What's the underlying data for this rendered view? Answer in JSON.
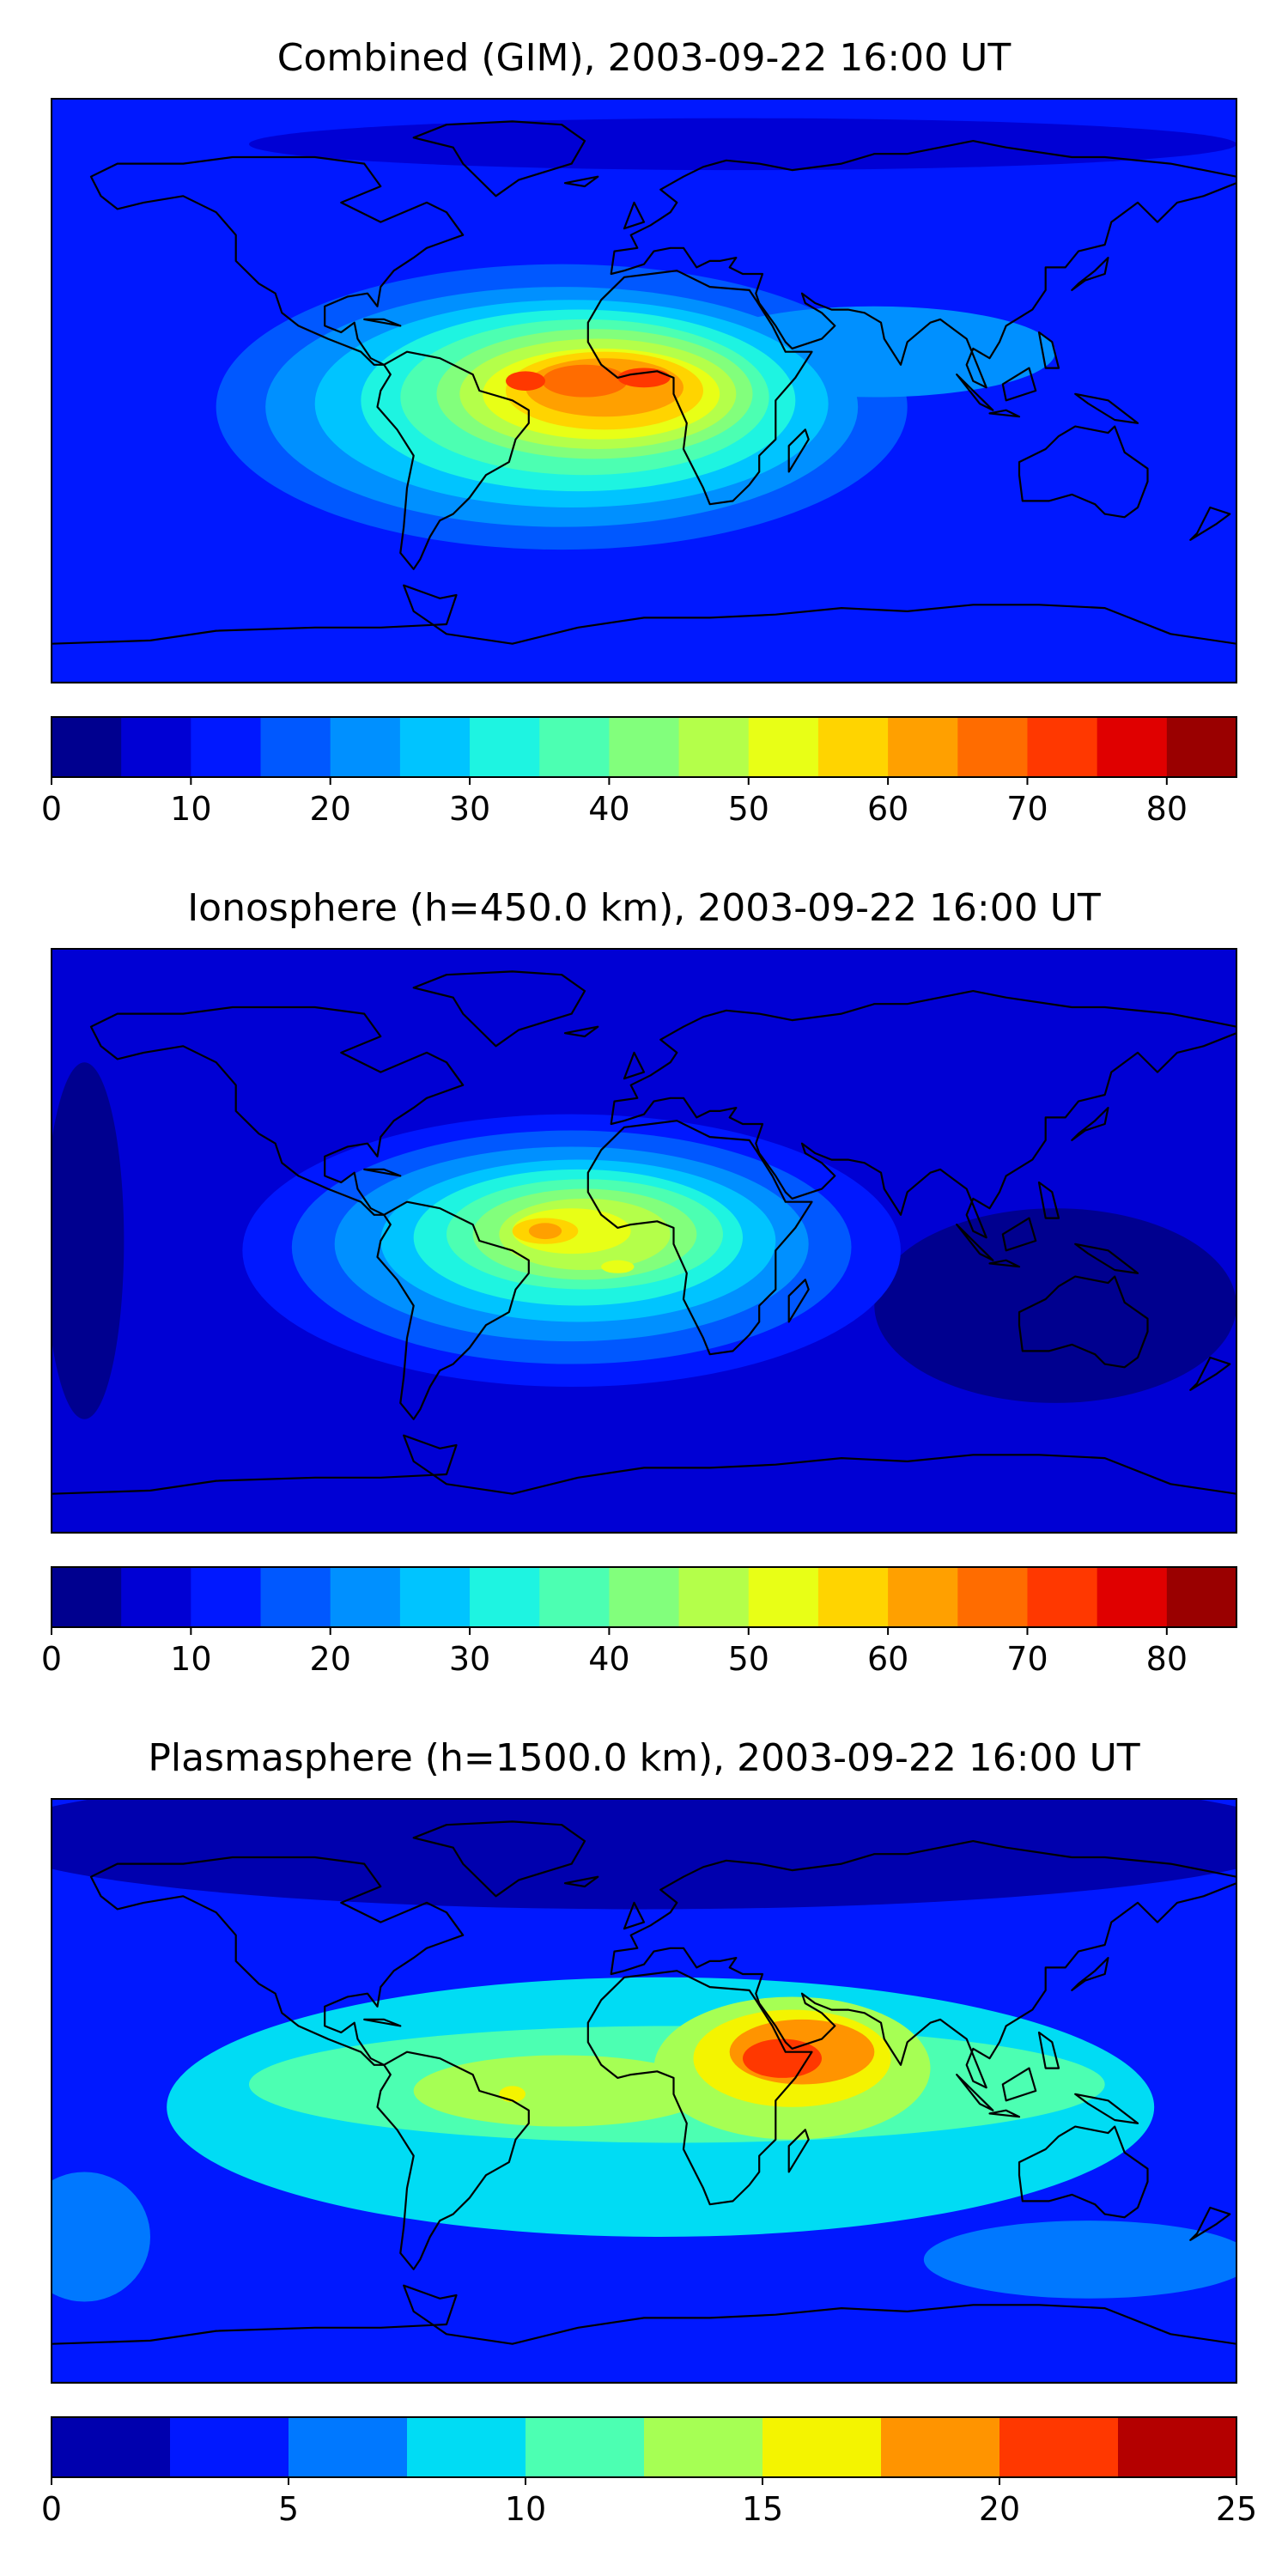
{
  "chart_data": [
    {
      "type": "heatmap",
      "title": "Combined (GIM), 2003-09-22 16:00 UT",
      "colorbar": {
        "bounds": [
          0,
          5,
          10,
          15,
          20,
          25,
          30,
          35,
          40,
          45,
          50,
          55,
          60,
          65,
          70,
          75,
          80,
          85
        ],
        "ticks": [
          "0",
          "10",
          "20",
          "30",
          "40",
          "50",
          "60",
          "70",
          "80"
        ],
        "tick_values": [
          0,
          10,
          20,
          30,
          40,
          50,
          60,
          70,
          80
        ],
        "colors": [
          "#00008f",
          "#0000d4",
          "#0018ff",
          "#0058ff",
          "#0090ff",
          "#00c4ff",
          "#1ef4e1",
          "#4cffb2",
          "#82ff7c",
          "#b4ff4a",
          "#e8ff16",
          "#ffd400",
          "#ffa000",
          "#ff6c00",
          "#ff3800",
          "#e00000",
          "#9a0000"
        ]
      },
      "background_level": 10,
      "features": [
        {
          "name": "high-latitude-north",
          "lon": 30,
          "lat": 76,
          "rx": 150,
          "ry": 8,
          "value": 7
        },
        {
          "name": "south-ring-1",
          "lon": -25,
          "lat": -5,
          "rx": 105,
          "ry": 44,
          "value": 17
        },
        {
          "name": "south-ring-2",
          "lon": -25,
          "lat": -5,
          "rx": 90,
          "ry": 37,
          "value": 22
        },
        {
          "name": "equatorial-band-east",
          "lon": 70,
          "lat": 12,
          "rx": 55,
          "ry": 14,
          "value": 20
        },
        {
          "name": "ring-27",
          "lon": -22,
          "lat": -4,
          "rx": 78,
          "ry": 32,
          "value": 27
        },
        {
          "name": "ring-32",
          "lon": -20,
          "lat": -3,
          "rx": 66,
          "ry": 28,
          "value": 32
        },
        {
          "name": "ring-37",
          "lon": -18,
          "lat": -2,
          "rx": 56,
          "ry": 24,
          "value": 37
        },
        {
          "name": "ring-42",
          "lon": -15,
          "lat": -1,
          "rx": 48,
          "ry": 20,
          "value": 42
        },
        {
          "name": "ring-47",
          "lon": -14,
          "lat": -1,
          "rx": 42,
          "ry": 17,
          "value": 47
        },
        {
          "name": "ring-52",
          "lon": -13,
          "lat": -1,
          "rx": 36,
          "ry": 14,
          "value": 52
        },
        {
          "name": "ring-57",
          "lon": -12,
          "lat": 0,
          "rx": 30,
          "ry": 12,
          "value": 57
        },
        {
          "name": "ring-62",
          "lon": -12,
          "lat": 1,
          "rx": 24,
          "ry": 9,
          "value": 62
        },
        {
          "name": "ring-67",
          "lon": -18,
          "lat": 3,
          "rx": 13,
          "ry": 5,
          "value": 67
        },
        {
          "name": "core-72-west",
          "lon": -36,
          "lat": 3,
          "rx": 6,
          "ry": 3,
          "value": 72
        },
        {
          "name": "core-72-east",
          "lon": 0,
          "lat": 4,
          "rx": 8,
          "ry": 3,
          "value": 72
        }
      ]
    },
    {
      "type": "heatmap",
      "title": "Ionosphere  (h=450.0 km), 2003-09-22 16:00 UT",
      "colorbar": {
        "bounds": [
          0,
          5,
          10,
          15,
          20,
          25,
          30,
          35,
          40,
          45,
          50,
          55,
          60,
          65,
          70,
          75,
          80,
          85
        ],
        "ticks": [
          "0",
          "10",
          "20",
          "30",
          "40",
          "50",
          "60",
          "70",
          "80"
        ],
        "tick_values": [
          0,
          10,
          20,
          30,
          40,
          50,
          60,
          70,
          80
        ],
        "colors": [
          "#00008f",
          "#0000d4",
          "#0018ff",
          "#0058ff",
          "#0090ff",
          "#00c4ff",
          "#1ef4e1",
          "#4cffb2",
          "#82ff7c",
          "#b4ff4a",
          "#e8ff16",
          "#ffd400",
          "#ffa000",
          "#ff6c00",
          "#ff3800",
          "#e00000",
          "#9a0000"
        ]
      },
      "background_level": 7,
      "features": [
        {
          "name": "pacific-low",
          "lon": -170,
          "lat": 0,
          "rx": 12,
          "ry": 55,
          "value": 3
        },
        {
          "name": "southeast-low",
          "lon": 125,
          "lat": -20,
          "rx": 55,
          "ry": 30,
          "value": 3
        },
        {
          "name": "main-ring-12",
          "lon": -22,
          "lat": -3,
          "rx": 100,
          "ry": 42,
          "value": 12
        },
        {
          "name": "main-ring-17",
          "lon": -22,
          "lat": -2,
          "rx": 85,
          "ry": 36,
          "value": 17
        },
        {
          "name": "main-ring-22",
          "lon": -22,
          "lat": -1,
          "rx": 72,
          "ry": 30,
          "value": 22
        },
        {
          "name": "main-ring-27",
          "lon": -20,
          "lat": 0,
          "rx": 60,
          "ry": 25,
          "value": 27
        },
        {
          "name": "main-ring-32",
          "lon": -20,
          "lat": 1,
          "rx": 50,
          "ry": 21,
          "value": 32
        },
        {
          "name": "main-ring-37",
          "lon": -18,
          "lat": 2,
          "rx": 42,
          "ry": 17,
          "value": 37
        },
        {
          "name": "main-ring-42",
          "lon": -18,
          "lat": 2,
          "rx": 34,
          "ry": 14,
          "value": 42
        },
        {
          "name": "main-ring-47",
          "lon": -18,
          "lat": 2,
          "rx": 26,
          "ry": 11,
          "value": 47
        },
        {
          "name": "main-ring-52",
          "lon": -22,
          "lat": 3,
          "rx": 18,
          "ry": 7,
          "value": 52
        },
        {
          "name": "main-ring-57",
          "lon": -30,
          "lat": 3,
          "rx": 10,
          "ry": 4,
          "value": 57
        },
        {
          "name": "core-62",
          "lon": -30,
          "lat": 3,
          "rx": 5,
          "ry": 2.5,
          "value": 62
        },
        {
          "name": "atlantic-spot",
          "lon": -8,
          "lat": -8,
          "rx": 5,
          "ry": 2,
          "value": 52
        }
      ]
    },
    {
      "type": "heatmap",
      "title": "Plasmasphere (h=1500.0 km), 2003-09-22 16:00 UT",
      "colorbar": {
        "bounds": [
          0,
          2.5,
          5,
          7.5,
          10,
          12.5,
          15,
          17.5,
          20,
          22.5,
          25
        ],
        "ticks": [
          "0",
          "5",
          "10",
          "15",
          "20",
          "25"
        ],
        "tick_values": [
          0,
          5,
          10,
          15,
          20,
          25
        ],
        "colors": [
          "#0000ae",
          "#0018ff",
          "#0078ff",
          "#00dcf4",
          "#4cffb2",
          "#a6ff54",
          "#f4f400",
          "#ff9400",
          "#ff3800",
          "#b40000"
        ]
      },
      "background_level": 3.5,
      "features": [
        {
          "name": "north-cap-low",
          "lon": 0,
          "lat": 78,
          "rx": 200,
          "ry": 22,
          "value": 1.5
        },
        {
          "name": "southwest-low",
          "lon": -170,
          "lat": -45,
          "rx": 20,
          "ry": 20,
          "value": 5.5
        },
        {
          "name": "cyan-band",
          "lon": 5,
          "lat": -5,
          "rx": 150,
          "ry": 40,
          "value": 8.5
        },
        {
          "name": "southeast-low",
          "lon": 135,
          "lat": -52,
          "rx": 50,
          "ry": 12,
          "value": 6
        },
        {
          "name": "green-band",
          "lon": 10,
          "lat": 2,
          "rx": 130,
          "ry": 18,
          "value": 11
        },
        {
          "name": "lightgreen-west",
          "lon": -25,
          "lat": 0,
          "rx": 45,
          "ry": 11,
          "value": 13.5
        },
        {
          "name": "lightgreen-east",
          "lon": 45,
          "lat": 7,
          "rx": 42,
          "ry": 22,
          "value": 13.5
        },
        {
          "name": "yellow-east",
          "lon": 45,
          "lat": 10,
          "rx": 30,
          "ry": 15,
          "value": 16
        },
        {
          "name": "yellow-spot-west",
          "lon": -40,
          "lat": -1,
          "rx": 4,
          "ry": 2.5,
          "value": 16
        },
        {
          "name": "orange-east",
          "lon": 48,
          "lat": 12,
          "rx": 22,
          "ry": 10,
          "value": 18.5
        },
        {
          "name": "red-core",
          "lon": 42,
          "lat": 10,
          "rx": 12,
          "ry": 6,
          "value": 21
        }
      ]
    }
  ]
}
